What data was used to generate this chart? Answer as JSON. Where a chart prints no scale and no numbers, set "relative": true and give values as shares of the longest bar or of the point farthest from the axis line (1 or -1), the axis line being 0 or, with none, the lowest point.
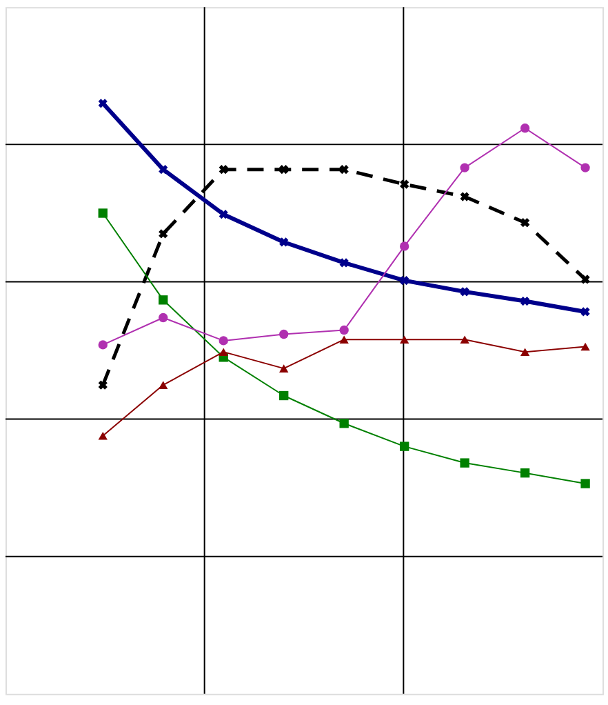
{
  "chart_data": {
    "type": "line",
    "relative": true,
    "grid": true,
    "categories": [
      null,
      null,
      null,
      null,
      null,
      null,
      null,
      null,
      null
    ],
    "series": [
      {
        "color": "#00008b",
        "marker": "cross",
        "values": [
          1,
          0.888,
          0.812,
          0.765,
          0.73,
          0.7,
          0.681,
          0.665,
          0.647
        ]
      },
      {
        "color": "#000000",
        "marker": "cross",
        "line_style": "dashed",
        "values": [
          0.523,
          0.779,
          0.888,
          0.888,
          0.888,
          0.863,
          0.842,
          0.798,
          0.702
        ]
      },
      {
        "color": "#008000",
        "marker": "square",
        "values": [
          0.814,
          0.667,
          0.57,
          0.505,
          0.458,
          0.419,
          0.391,
          0.374,
          0.356
        ]
      },
      {
        "color": "#b030b0",
        "marker": "circle",
        "values": [
          0.591,
          0.637,
          0.598,
          0.609,
          0.616,
          0.758,
          0.891,
          0.958,
          0.891
        ]
      },
      {
        "color": "#8b0000",
        "marker": "triangle",
        "values": [
          0.437,
          0.523,
          0.579,
          0.551,
          0.6,
          0.6,
          0.6,
          0.579,
          0.588
        ]
      }
    ]
  }
}
